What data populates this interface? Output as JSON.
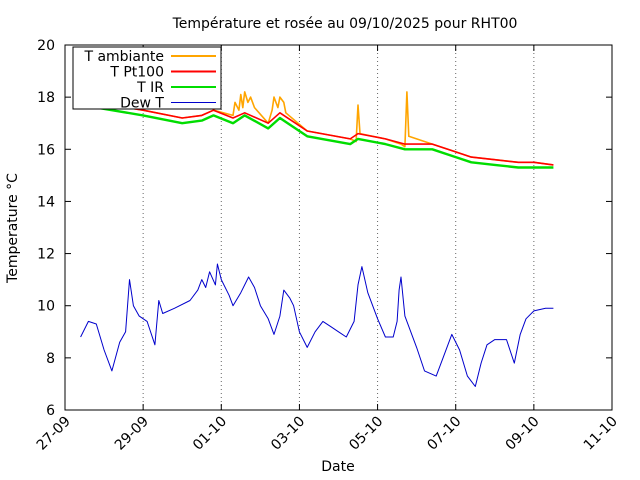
{
  "chart_data": {
    "type": "line",
    "title": "Température et rosée au 09/10/2025 pour RHT00",
    "xlabel": "Date",
    "ylabel": "Temperature °C",
    "ylim": [
      6,
      20
    ],
    "xlim": [
      0,
      14
    ],
    "grid": "vertical dotted at each x tick",
    "legend_position": "top-left",
    "x_ticks": [
      {
        "x": 0,
        "label": "27-09"
      },
      {
        "x": 2,
        "label": "29-09"
      },
      {
        "x": 4,
        "label": "01-10"
      },
      {
        "x": 6,
        "label": "03-10"
      },
      {
        "x": 8,
        "label": "05-10"
      },
      {
        "x": 10,
        "label": "07-10"
      },
      {
        "x": 12,
        "label": "09-10"
      },
      {
        "x": 14,
        "label": "11-10"
      }
    ],
    "y_ticks": [
      6,
      8,
      10,
      12,
      14,
      16,
      18,
      20
    ],
    "series": [
      {
        "name": "T ambiante",
        "color": "#ffa500",
        "points": [
          [
            0.4,
            17.9
          ],
          [
            1.2,
            17.7
          ],
          [
            2.0,
            17.5
          ],
          [
            3.0,
            17.2
          ],
          [
            3.5,
            17.3
          ],
          [
            3.8,
            17.5
          ],
          [
            4.3,
            17.3
          ],
          [
            4.35,
            17.8
          ],
          [
            4.45,
            17.5
          ],
          [
            4.5,
            18.1
          ],
          [
            4.55,
            17.6
          ],
          [
            4.6,
            18.2
          ],
          [
            4.68,
            17.8
          ],
          [
            4.75,
            18.0
          ],
          [
            4.85,
            17.6
          ],
          [
            5.2,
            17.0
          ],
          [
            5.3,
            17.5
          ],
          [
            5.35,
            18.0
          ],
          [
            5.45,
            17.6
          ],
          [
            5.5,
            18.0
          ],
          [
            5.6,
            17.8
          ],
          [
            5.65,
            17.4
          ],
          [
            6.2,
            16.7
          ],
          [
            7.3,
            16.4
          ],
          [
            7.45,
            16.3
          ],
          [
            7.5,
            17.7
          ],
          [
            7.55,
            16.6
          ],
          [
            8.2,
            16.4
          ],
          [
            8.6,
            16.2
          ],
          [
            8.7,
            16.1
          ],
          [
            8.75,
            18.2
          ],
          [
            8.8,
            16.5
          ],
          [
            9.4,
            16.2
          ],
          [
            10.0,
            15.9
          ],
          [
            10.4,
            15.7
          ],
          [
            11.0,
            15.6
          ],
          [
            11.6,
            15.5
          ],
          [
            12.0,
            15.5
          ],
          [
            12.5,
            15.4
          ]
        ]
      },
      {
        "name": "T Pt100",
        "color": "#ff0000",
        "points": [
          [
            0.4,
            17.9
          ],
          [
            1.2,
            17.7
          ],
          [
            2.0,
            17.5
          ],
          [
            3.0,
            17.2
          ],
          [
            3.5,
            17.3
          ],
          [
            3.8,
            17.5
          ],
          [
            4.3,
            17.2
          ],
          [
            4.6,
            17.4
          ],
          [
            5.2,
            17.0
          ],
          [
            5.5,
            17.4
          ],
          [
            6.2,
            16.7
          ],
          [
            7.3,
            16.4
          ],
          [
            7.5,
            16.6
          ],
          [
            8.2,
            16.4
          ],
          [
            8.7,
            16.2
          ],
          [
            9.4,
            16.2
          ],
          [
            10.0,
            15.9
          ],
          [
            10.4,
            15.7
          ],
          [
            11.0,
            15.6
          ],
          [
            11.6,
            15.5
          ],
          [
            12.0,
            15.5
          ],
          [
            12.5,
            15.4
          ]
        ]
      },
      {
        "name": "T IR",
        "color": "#00dd00",
        "points": [
          [
            0.4,
            17.7
          ],
          [
            1.2,
            17.5
          ],
          [
            2.0,
            17.3
          ],
          [
            3.0,
            17.0
          ],
          [
            3.5,
            17.1
          ],
          [
            3.8,
            17.3
          ],
          [
            4.3,
            17.0
          ],
          [
            4.6,
            17.3
          ],
          [
            5.2,
            16.8
          ],
          [
            5.5,
            17.2
          ],
          [
            6.2,
            16.5
          ],
          [
            7.3,
            16.2
          ],
          [
            7.5,
            16.4
          ],
          [
            8.2,
            16.2
          ],
          [
            8.7,
            16.0
          ],
          [
            9.4,
            16.0
          ],
          [
            10.0,
            15.7
          ],
          [
            10.4,
            15.5
          ],
          [
            11.0,
            15.4
          ],
          [
            11.6,
            15.3
          ],
          [
            12.0,
            15.3
          ],
          [
            12.5,
            15.3
          ]
        ]
      },
      {
        "name": "Dew T",
        "color": "#0000cc",
        "points": [
          [
            0.4,
            8.8
          ],
          [
            0.6,
            9.4
          ],
          [
            0.8,
            9.3
          ],
          [
            1.0,
            8.3
          ],
          [
            1.2,
            7.5
          ],
          [
            1.4,
            8.6
          ],
          [
            1.55,
            9.0
          ],
          [
            1.65,
            11.0
          ],
          [
            1.75,
            10.0
          ],
          [
            1.9,
            9.6
          ],
          [
            2.1,
            9.4
          ],
          [
            2.3,
            8.5
          ],
          [
            2.4,
            10.2
          ],
          [
            2.5,
            9.7
          ],
          [
            2.8,
            9.9
          ],
          [
            3.2,
            10.2
          ],
          [
            3.4,
            10.6
          ],
          [
            3.5,
            11.0
          ],
          [
            3.6,
            10.7
          ],
          [
            3.7,
            11.3
          ],
          [
            3.85,
            10.8
          ],
          [
            3.9,
            11.6
          ],
          [
            4.0,
            11.0
          ],
          [
            4.2,
            10.4
          ],
          [
            4.3,
            10.0
          ],
          [
            4.5,
            10.5
          ],
          [
            4.7,
            11.1
          ],
          [
            4.85,
            10.7
          ],
          [
            5.0,
            10.0
          ],
          [
            5.2,
            9.5
          ],
          [
            5.35,
            8.9
          ],
          [
            5.5,
            9.6
          ],
          [
            5.6,
            10.6
          ],
          [
            5.75,
            10.3
          ],
          [
            5.85,
            10.0
          ],
          [
            6.0,
            9.0
          ],
          [
            6.2,
            8.4
          ],
          [
            6.4,
            9.0
          ],
          [
            6.6,
            9.4
          ],
          [
            6.8,
            9.2
          ],
          [
            7.0,
            9.0
          ],
          [
            7.2,
            8.8
          ],
          [
            7.4,
            9.4
          ],
          [
            7.5,
            10.8
          ],
          [
            7.6,
            11.5
          ],
          [
            7.75,
            10.5
          ],
          [
            8.0,
            9.5
          ],
          [
            8.2,
            8.8
          ],
          [
            8.4,
            8.8
          ],
          [
            8.5,
            9.4
          ],
          [
            8.55,
            10.6
          ],
          [
            8.6,
            11.1
          ],
          [
            8.7,
            9.6
          ],
          [
            9.0,
            8.4
          ],
          [
            9.2,
            7.5
          ],
          [
            9.5,
            7.3
          ],
          [
            9.7,
            8.1
          ],
          [
            9.9,
            8.9
          ],
          [
            10.1,
            8.3
          ],
          [
            10.3,
            7.3
          ],
          [
            10.5,
            6.9
          ],
          [
            10.65,
            7.8
          ],
          [
            10.8,
            8.5
          ],
          [
            11.0,
            8.7
          ],
          [
            11.3,
            8.7
          ],
          [
            11.5,
            7.8
          ],
          [
            11.65,
            8.9
          ],
          [
            11.8,
            9.5
          ],
          [
            12.0,
            9.8
          ],
          [
            12.3,
            9.9
          ],
          [
            12.5,
            9.9
          ]
        ]
      }
    ]
  }
}
